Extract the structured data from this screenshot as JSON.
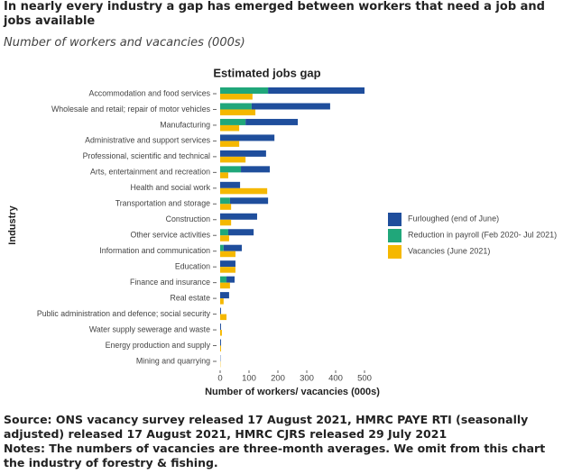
{
  "headline": "In nearly every industry a gap has emerged between workers that need a job and jobs available",
  "subtitle": "Number of workers and vacancies (000s)",
  "source": "Source: ONS vacancy survey released 17 August 2021, HMRC PAYE RTI (seasonally adjusted) released 17 August 2021, HMRC CJRS released 29 July 2021",
  "notes": "Notes: The numbers of vacancies are three-month averages. We omit from this chart the industry of forestry & fishing.",
  "chart_data": {
    "type": "bar",
    "title": "Estimated jobs gap",
    "x_label": "Number of workers/ vacancies (000s)",
    "y_label": "Industry",
    "categories": [
      "Accommodation and food services",
      "Wholesale and retail; repair of motor vehicles",
      "Manufacturing",
      "Administrative and support services",
      "Professional, scientific and technical",
      "Arts, entertainment and recreation",
      "Health and social work",
      "Transportation and storage",
      "Construction",
      "Other service activities",
      "Information and communication",
      "Education",
      "Finance and insurance",
      "Real estate",
      "Public administration and defence; social security",
      "Water supply sewerage and waste",
      "Energy production and supply",
      "Mining and quarrying"
    ],
    "series": [
      {
        "name": "Furloughed (end of June)",
        "color": "#1f4e9c",
        "values": [
          334,
          272,
          181,
          188,
          159,
          100,
          69,
          132,
          128,
          88,
          63,
          53,
          28,
          31,
          3,
          3,
          3,
          1
        ]
      },
      {
        "name": "Reduction in payroll (Feb 2020- Jul 2021)",
        "color": "#20a77a",
        "values": [
          166,
          109,
          88,
          0,
          0,
          72,
          0,
          34,
          0,
          28,
          12,
          0,
          22,
          0,
          0,
          0,
          0,
          0
        ]
      },
      {
        "name": "Vacancies (June 2021)",
        "color": "#f5b800",
        "values": [
          112,
          122,
          66,
          66,
          88,
          28,
          163,
          38,
          38,
          31,
          53,
          53,
          34,
          12,
          22,
          6,
          3,
          1
        ]
      }
    ],
    "xlim": [
      0,
      500
    ],
    "xticks": [
      0,
      100,
      200,
      300,
      400,
      500
    ]
  }
}
